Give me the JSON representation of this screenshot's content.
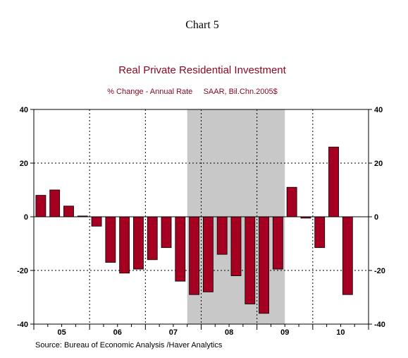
{
  "page": {
    "heading": "Chart 5",
    "source": "Source:  Bureau of Economic Analysis /Haver Analytics"
  },
  "chart_data": {
    "type": "bar",
    "title": "Real Private Residential Investment",
    "subtitle": "% Change - Annual Rate     SAAR, Bil.Chn.2005$",
    "xlabel": "",
    "ylabel": "",
    "ylim": [
      -40,
      40
    ],
    "yticks": [
      40,
      20,
      0,
      -20,
      -40
    ],
    "year_labels": [
      "05",
      "06",
      "07",
      "08",
      "09",
      "10"
    ],
    "categories": [
      "2005Q1",
      "2005Q2",
      "2005Q3",
      "2005Q4",
      "2006Q1",
      "2006Q2",
      "2006Q3",
      "2006Q4",
      "2007Q1",
      "2007Q2",
      "2007Q3",
      "2007Q4",
      "2008Q1",
      "2008Q2",
      "2008Q3",
      "2008Q4",
      "2009Q1",
      "2009Q2",
      "2009Q3",
      "2009Q4",
      "2010Q1",
      "2010Q2",
      "2010Q3"
    ],
    "values": [
      8,
      10,
      4,
      0.3,
      -3.5,
      -17,
      -21,
      -19.5,
      -16,
      -11.5,
      -24,
      -29,
      -28,
      -14,
      -22,
      -32.5,
      -36,
      -19.5,
      11,
      -0.5,
      -11.5,
      26,
      -29
    ],
    "recession_shading": [
      "2007Q4",
      "2009Q2"
    ],
    "bar_color": "#A50021",
    "recession_color": "#C8C8C8",
    "grid": "dotted, at 20 and -20 and year boundaries",
    "legend": "none"
  }
}
